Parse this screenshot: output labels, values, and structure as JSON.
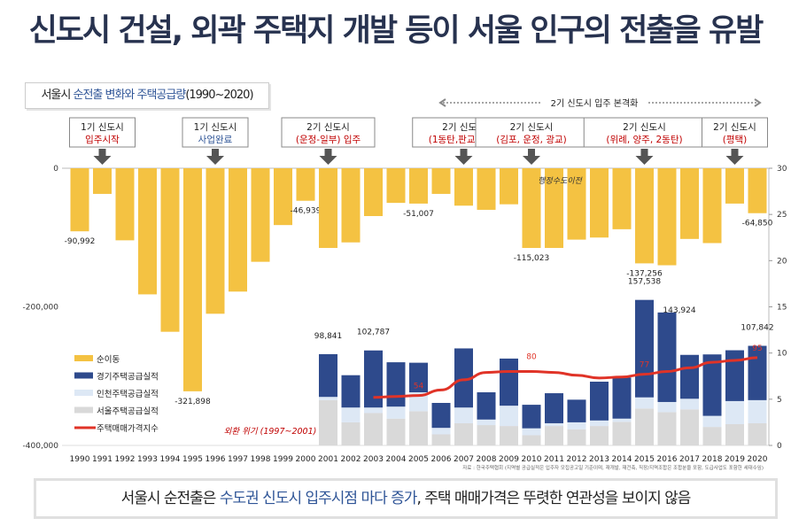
{
  "title": "신도시 건설, 외곽 주택지 개발 등이 서울 인구의 전출을 유발",
  "subtitle": {
    "prefix": "서울시 ",
    "highlight": "순전출 변화와  주택공급량",
    "suffix": "(1990~2020)"
  },
  "annotations": [
    {
      "line1": "1기 신도시",
      "line2": "입주시작",
      "year": 1991,
      "color": "#c00000"
    },
    {
      "line1": "1기 신도시",
      "line2": "사업완료",
      "year": 1996,
      "color": "#2f5597"
    },
    {
      "line1": "2기 신도시",
      "line2": "(운정-일부) 입주",
      "year": 2001,
      "color": "#c00000"
    },
    {
      "line1": "2기 신도시",
      "line2": "(1동탄,판교,아산)",
      "year": 2007,
      "color": "#c00000"
    },
    {
      "line1": "2기 신도시",
      "line2": "(김포, 운정, 광교)",
      "year": 2010,
      "color": "#c00000"
    },
    {
      "line1": "2기 신도시",
      "line2": "(위례, 양주, 2동탄)",
      "year": 2015,
      "color": "#c00000"
    },
    {
      "line1": "2기 신도시",
      "line2": "(평택)",
      "year": 2019,
      "color": "#c00000"
    }
  ],
  "range_label": "2기 신도시 입주 본격화",
  "event_labels": {
    "capital": "행정수도이전",
    "crisis": "외환 위기 (1997~2001)"
  },
  "footnote": "자료 : 한국주택협회 (지역별 공급실적은 입주자 모집공고일 기준이며, 재개발, 재건축, 직장/지역조합은 조합분을 포함, 도급사업도 포함한 세대수임)",
  "conclusion": {
    "p1": "서울시 순전출은 ",
    "hl": "수도권 신도시 입주시점 마다 증가",
    "p2": ", 주택 매매가격은 뚜렷한 연관성을 보이지 않음"
  },
  "chart_data": {
    "type": "bar",
    "categories": [
      "1990",
      "1991",
      "1992",
      "1993",
      "1994",
      "1995",
      "1996",
      "1997",
      "1998",
      "1999",
      "2000",
      "2001",
      "2002",
      "2003",
      "2004",
      "2005",
      "2006",
      "2007",
      "2008",
      "2009",
      "2010",
      "2011",
      "2012",
      "2013",
      "2014",
      "2015",
      "2016",
      "2017",
      "2018",
      "2019",
      "2020"
    ],
    "left_axis": {
      "ticks": [
        "0",
        "-200,000",
        "-400,000"
      ],
      "range": [
        -400000,
        0
      ]
    },
    "right_axis": {
      "ticks": [
        "30",
        "25",
        "20",
        "15",
        "10",
        "5",
        "0"
      ],
      "range": [
        0,
        30
      ]
    },
    "series": [
      {
        "name": "순이동",
        "axis": "left",
        "color": "#f4c242",
        "values": [
          -90992,
          -37000,
          -104000,
          -182000,
          -236000,
          -321898,
          -210000,
          -178000,
          -135000,
          -82000,
          -46939,
          -115000,
          -107000,
          -69000,
          -50000,
          -51007,
          -37000,
          -54000,
          -60000,
          -52000,
          -115023,
          -115000,
          -103000,
          -100000,
          -88000,
          -137256,
          -140000,
          -102000,
          -108000,
          -51000,
          -64850
        ],
        "labels": {
          "1990": "-90,992",
          "1995": "-321,898",
          "2000": "-46,939",
          "2005": "-51,007",
          "2010": "-115,023",
          "2015": "-137,256",
          "2020": "-64,850"
        }
      },
      {
        "name": "경기주택공급실적",
        "axis": "right",
        "color": "#2e4a8c",
        "values": [
          null,
          null,
          null,
          null,
          null,
          null,
          null,
          null,
          null,
          null,
          null,
          4.63,
          3.5,
          6.18,
          4.8,
          3.2,
          2.7,
          6.4,
          2.95,
          5.1,
          2.55,
          3.25,
          2.45,
          4.2,
          4.45,
          10.55,
          9.69,
          4.75,
          6.65,
          5.5,
          5.88
        ]
      },
      {
        "name": "인천주택공급실적",
        "axis": "right",
        "color": "#dde8f5",
        "values": [
          null,
          null,
          null,
          null,
          null,
          null,
          null,
          null,
          null,
          null,
          null,
          0.35,
          1.6,
          0.6,
          1.3,
          2.05,
          0.7,
          1.7,
          0.6,
          2.2,
          0.75,
          0.3,
          0.75,
          0.6,
          0.35,
          1.2,
          1.1,
          1.15,
          1.2,
          2.5,
          2.5
        ]
      },
      {
        "name": "서울주택공급실적",
        "axis": "right",
        "color": "#d9d9d9",
        "values": [
          null,
          null,
          null,
          null,
          null,
          null,
          null,
          null,
          null,
          null,
          null,
          4.9,
          2.5,
          3.5,
          2.9,
          3.7,
          1.2,
          2.4,
          2.2,
          2.1,
          1.1,
          2.1,
          1.75,
          2.1,
          2.55,
          4.0,
          3.6,
          3.9,
          2.0,
          2.3,
          2.4
        ]
      },
      {
        "name": "주택매매가격지수",
        "axis": "right-x10",
        "type": "line",
        "color": "#e03327",
        "values": [
          null,
          null,
          null,
          null,
          null,
          null,
          null,
          null,
          null,
          null,
          null,
          null,
          null,
          52,
          53,
          54,
          60,
          71,
          79,
          80,
          80,
          79,
          76,
          73,
          74,
          77,
          80,
          84,
          90,
          92,
          95
        ],
        "labels": {
          "2005": "54",
          "2010": "80",
          "2015": "77",
          "2020": "95"
        }
      }
    ],
    "total_labels": {
      "2001": "98,841",
      "2003": "102,787",
      "2015": "157,538",
      "2016": "143,924",
      "2020": "107,842"
    },
    "legend": "left",
    "grid": false
  }
}
